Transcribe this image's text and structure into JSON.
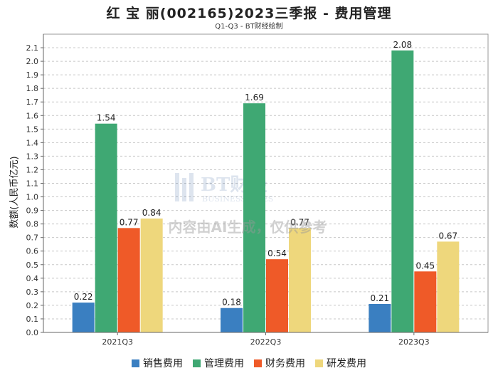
{
  "chart_data": {
    "type": "bar",
    "title": "红 宝 丽(002165)2023三季报 - 费用管理",
    "subtitle": "Q1-Q3 - BT财经绘制",
    "ylabel": "数额(人民币亿元)",
    "xlabel": "",
    "categories": [
      "2021Q3",
      "2022Q3",
      "2023Q3"
    ],
    "ylim": [
      0,
      2.2
    ],
    "yticks": [
      "0.0",
      "0.1",
      "0.2",
      "0.3",
      "0.4",
      "0.5",
      "0.6",
      "0.7",
      "0.8",
      "0.9",
      "1.0",
      "1.1",
      "1.2",
      "1.3",
      "1.4",
      "1.5",
      "1.6",
      "1.7",
      "1.8",
      "1.9",
      "2.0",
      "2.1"
    ],
    "grid": true,
    "legend_position": "bottom",
    "series": [
      {
        "name": "销售费用",
        "color": "#3a7fc1",
        "values": [
          0.22,
          0.18,
          0.21
        ]
      },
      {
        "name": "管理费用",
        "color": "#3fa873",
        "values": [
          1.54,
          1.69,
          2.08
        ]
      },
      {
        "name": "财务费用",
        "color": "#ef5a28",
        "values": [
          0.77,
          0.54,
          0.45
        ]
      },
      {
        "name": "研发费用",
        "color": "#eed77c",
        "values": [
          0.84,
          0.77,
          0.67
        ]
      }
    ],
    "watermark": {
      "brand": "BT财经",
      "brand_sub": "BUSINESSTIMES",
      "disclaimer": "内容由AI生成，仅供参考"
    }
  }
}
